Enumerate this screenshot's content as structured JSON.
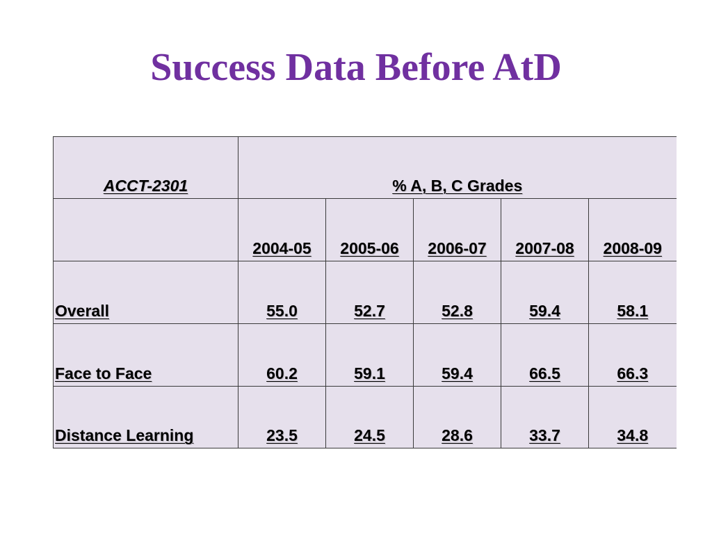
{
  "slide": {
    "title": "Success Data Before AtD"
  },
  "table": {
    "course": "ACCT-2301",
    "metric": "% A, B, C Grades",
    "years": [
      "2004-05",
      "2005-06",
      "2006-07",
      "2007-08",
      "2008-09"
    ],
    "rows": [
      {
        "label": "Overall",
        "values": [
          "55.0",
          "52.7",
          "52.8",
          "59.4",
          "58.1"
        ]
      },
      {
        "label": "Face to Face",
        "values": [
          "60.2",
          "59.1",
          "59.4",
          "66.5",
          "66.3"
        ]
      },
      {
        "label": "Distance Learning",
        "values": [
          "23.5",
          "24.5",
          "28.6",
          "33.7",
          "34.8"
        ]
      }
    ]
  },
  "colors": {
    "title": "#7030a0",
    "cell_fill": "#e6e0ec",
    "border": "#3a3a3a"
  }
}
